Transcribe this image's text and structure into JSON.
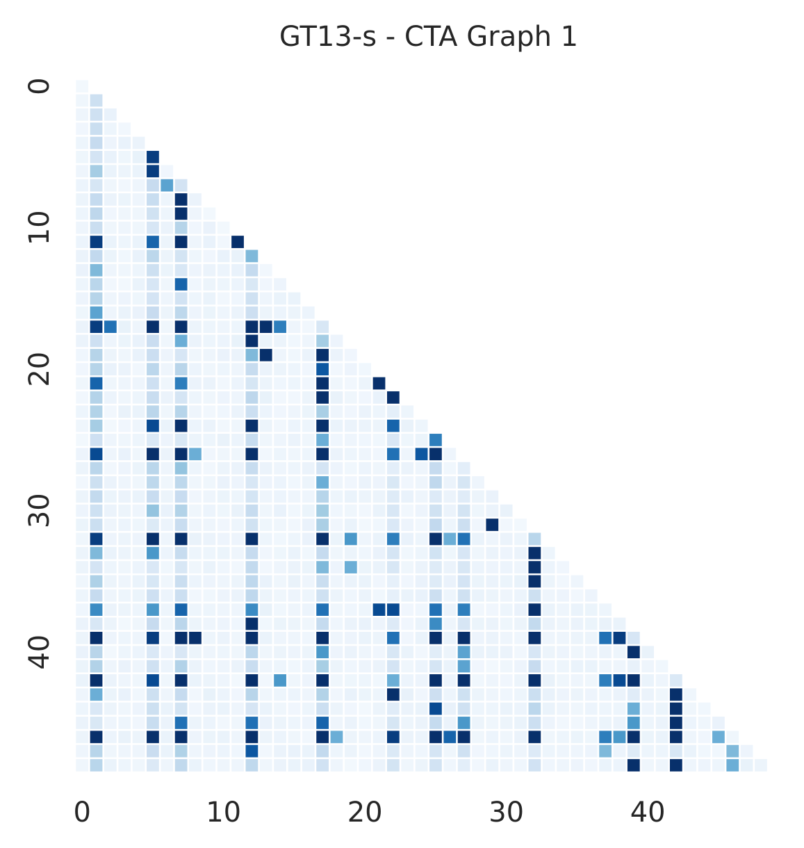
{
  "chart_data": {
    "type": "heatmap",
    "title": "GT13-s - CTA Graph 1",
    "xlabel": "",
    "ylabel": "",
    "n": 49,
    "mask": "lower-triangle",
    "colormap": "Blues",
    "x_ticks": [
      0,
      10,
      20,
      30,
      40
    ],
    "y_ticks": [
      0,
      10,
      20,
      30,
      40
    ],
    "grid": false,
    "strong_cells": [
      [
        4,
        1
      ],
      [
        5,
        5
      ],
      [
        6,
        1
      ],
      [
        6,
        5
      ],
      [
        7,
        6
      ],
      [
        8,
        7
      ],
      [
        9,
        7
      ],
      [
        11,
        1
      ],
      [
        11,
        5
      ],
      [
        11,
        7
      ],
      [
        11,
        11
      ],
      [
        12,
        12
      ],
      [
        13,
        1
      ],
      [
        14,
        7
      ],
      [
        15,
        1
      ],
      [
        16,
        1
      ],
      [
        17,
        1
      ],
      [
        17,
        2
      ],
      [
        17,
        5
      ],
      [
        17,
        7
      ],
      [
        17,
        12
      ],
      [
        17,
        13
      ],
      [
        17,
        14
      ],
      [
        18,
        7
      ],
      [
        18,
        12
      ],
      [
        19,
        12
      ],
      [
        19,
        13
      ],
      [
        19,
        17
      ],
      [
        20,
        17
      ],
      [
        21,
        1
      ],
      [
        21,
        7
      ],
      [
        21,
        17
      ],
      [
        21,
        21
      ],
      [
        22,
        17
      ],
      [
        22,
        22
      ],
      [
        24,
        1
      ],
      [
        24,
        5
      ],
      [
        24,
        7
      ],
      [
        24,
        12
      ],
      [
        24,
        17
      ],
      [
        24,
        22
      ],
      [
        25,
        17
      ],
      [
        25,
        25
      ],
      [
        26,
        1
      ],
      [
        26,
        5
      ],
      [
        26,
        7
      ],
      [
        26,
        8
      ],
      [
        26,
        12
      ],
      [
        26,
        17
      ],
      [
        26,
        22
      ],
      [
        26,
        24
      ],
      [
        26,
        25
      ],
      [
        27,
        7
      ],
      [
        28,
        17
      ],
      [
        30,
        5
      ],
      [
        31,
        29
      ],
      [
        32,
        1
      ],
      [
        32,
        5
      ],
      [
        32,
        7
      ],
      [
        32,
        12
      ],
      [
        32,
        17
      ],
      [
        32,
        19
      ],
      [
        32,
        22
      ],
      [
        32,
        25
      ],
      [
        32,
        26
      ],
      [
        32,
        27
      ],
      [
        33,
        1
      ],
      [
        33,
        5
      ],
      [
        33,
        32
      ],
      [
        34,
        17
      ],
      [
        34,
        19
      ],
      [
        34,
        32
      ],
      [
        35,
        32
      ],
      [
        37,
        1
      ],
      [
        37,
        5
      ],
      [
        37,
        7
      ],
      [
        37,
        12
      ],
      [
        37,
        17
      ],
      [
        37,
        21
      ],
      [
        37,
        22
      ],
      [
        37,
        25
      ],
      [
        37,
        27
      ],
      [
        37,
        32
      ],
      [
        38,
        12
      ],
      [
        38,
        25
      ],
      [
        39,
        1
      ],
      [
        39,
        5
      ],
      [
        39,
        7
      ],
      [
        39,
        8
      ],
      [
        39,
        12
      ],
      [
        39,
        17
      ],
      [
        39,
        22
      ],
      [
        39,
        25
      ],
      [
        39,
        27
      ],
      [
        39,
        32
      ],
      [
        39,
        37
      ],
      [
        39,
        38
      ],
      [
        40,
        17
      ],
      [
        40,
        27
      ],
      [
        40,
        39
      ],
      [
        41,
        27
      ],
      [
        42,
        1
      ],
      [
        42,
        5
      ],
      [
        42,
        7
      ],
      [
        42,
        12
      ],
      [
        42,
        14
      ],
      [
        42,
        17
      ],
      [
        42,
        22
      ],
      [
        42,
        25
      ],
      [
        42,
        27
      ],
      [
        42,
        32
      ],
      [
        42,
        37
      ],
      [
        42,
        38
      ],
      [
        42,
        39
      ],
      [
        43,
        1
      ],
      [
        43,
        22
      ],
      [
        43,
        42
      ],
      [
        44,
        25
      ],
      [
        44,
        39
      ],
      [
        44,
        42
      ],
      [
        45,
        7
      ],
      [
        45,
        12
      ],
      [
        45,
        17
      ],
      [
        45,
        27
      ],
      [
        45,
        39
      ],
      [
        45,
        42
      ],
      [
        46,
        1
      ],
      [
        46,
        5
      ],
      [
        46,
        7
      ],
      [
        46,
        12
      ],
      [
        46,
        17
      ],
      [
        46,
        18
      ],
      [
        46,
        22
      ],
      [
        46,
        25
      ],
      [
        46,
        26
      ],
      [
        46,
        27
      ],
      [
        46,
        32
      ],
      [
        46,
        37
      ],
      [
        46,
        38
      ],
      [
        46,
        39
      ],
      [
        46,
        42
      ],
      [
        46,
        45
      ],
      [
        47,
        12
      ],
      [
        47,
        37
      ],
      [
        47,
        46
      ],
      [
        48,
        39
      ],
      [
        48,
        42
      ],
      [
        48,
        46
      ]
    ],
    "strong_values": [
      0.25,
      0.95,
      0.35,
      0.95,
      0.55,
      1.0,
      1.0,
      0.95,
      0.8,
      1.0,
      1.0,
      0.45,
      0.45,
      0.8,
      0.3,
      0.55,
      0.95,
      0.75,
      1.0,
      1.0,
      1.0,
      1.0,
      0.7,
      0.5,
      1.0,
      0.45,
      1.0,
      1.0,
      0.85,
      0.8,
      0.7,
      1.0,
      1.0,
      1.0,
      1.0,
      0.35,
      0.9,
      1.0,
      1.0,
      1.0,
      0.8,
      0.5,
      0.7,
      0.9,
      1.0,
      1.0,
      0.5,
      1.0,
      1.0,
      0.75,
      0.85,
      1.0,
      0.4,
      0.5,
      0.4,
      1.0,
      0.95,
      1.0,
      1.0,
      1.0,
      1.0,
      0.6,
      0.7,
      1.0,
      0.5,
      0.75,
      0.45,
      0.6,
      1.0,
      0.45,
      0.5,
      1.0,
      1.0,
      0.65,
      0.6,
      0.8,
      0.65,
      0.75,
      0.9,
      0.9,
      0.75,
      0.7,
      1.0,
      1.0,
      0.65,
      1.0,
      0.95,
      1.0,
      1.0,
      1.0,
      1.0,
      0.75,
      1.0,
      1.0,
      1.0,
      0.75,
      0.95,
      0.6,
      0.55,
      1.0,
      0.55,
      1.0,
      0.9,
      1.0,
      1.0,
      0.6,
      1.0,
      0.5,
      1.0,
      1.0,
      1.0,
      0.7,
      0.9,
      1.0,
      0.5,
      1.0,
      1.0,
      0.9,
      0.5,
      1.0,
      0.75,
      0.75,
      0.8,
      0.6,
      0.6,
      1.0,
      1.0,
      1.0,
      1.0,
      1.0,
      1.0,
      0.5,
      0.95,
      1.0,
      0.8,
      1.0,
      1.0,
      0.7,
      0.6,
      1.0,
      1.0,
      0.5,
      0.85,
      0.45,
      0.45,
      1.0,
      1.0,
      0.5
    ],
    "color_min": "#f7fbff",
    "color_max": "#08306b"
  }
}
